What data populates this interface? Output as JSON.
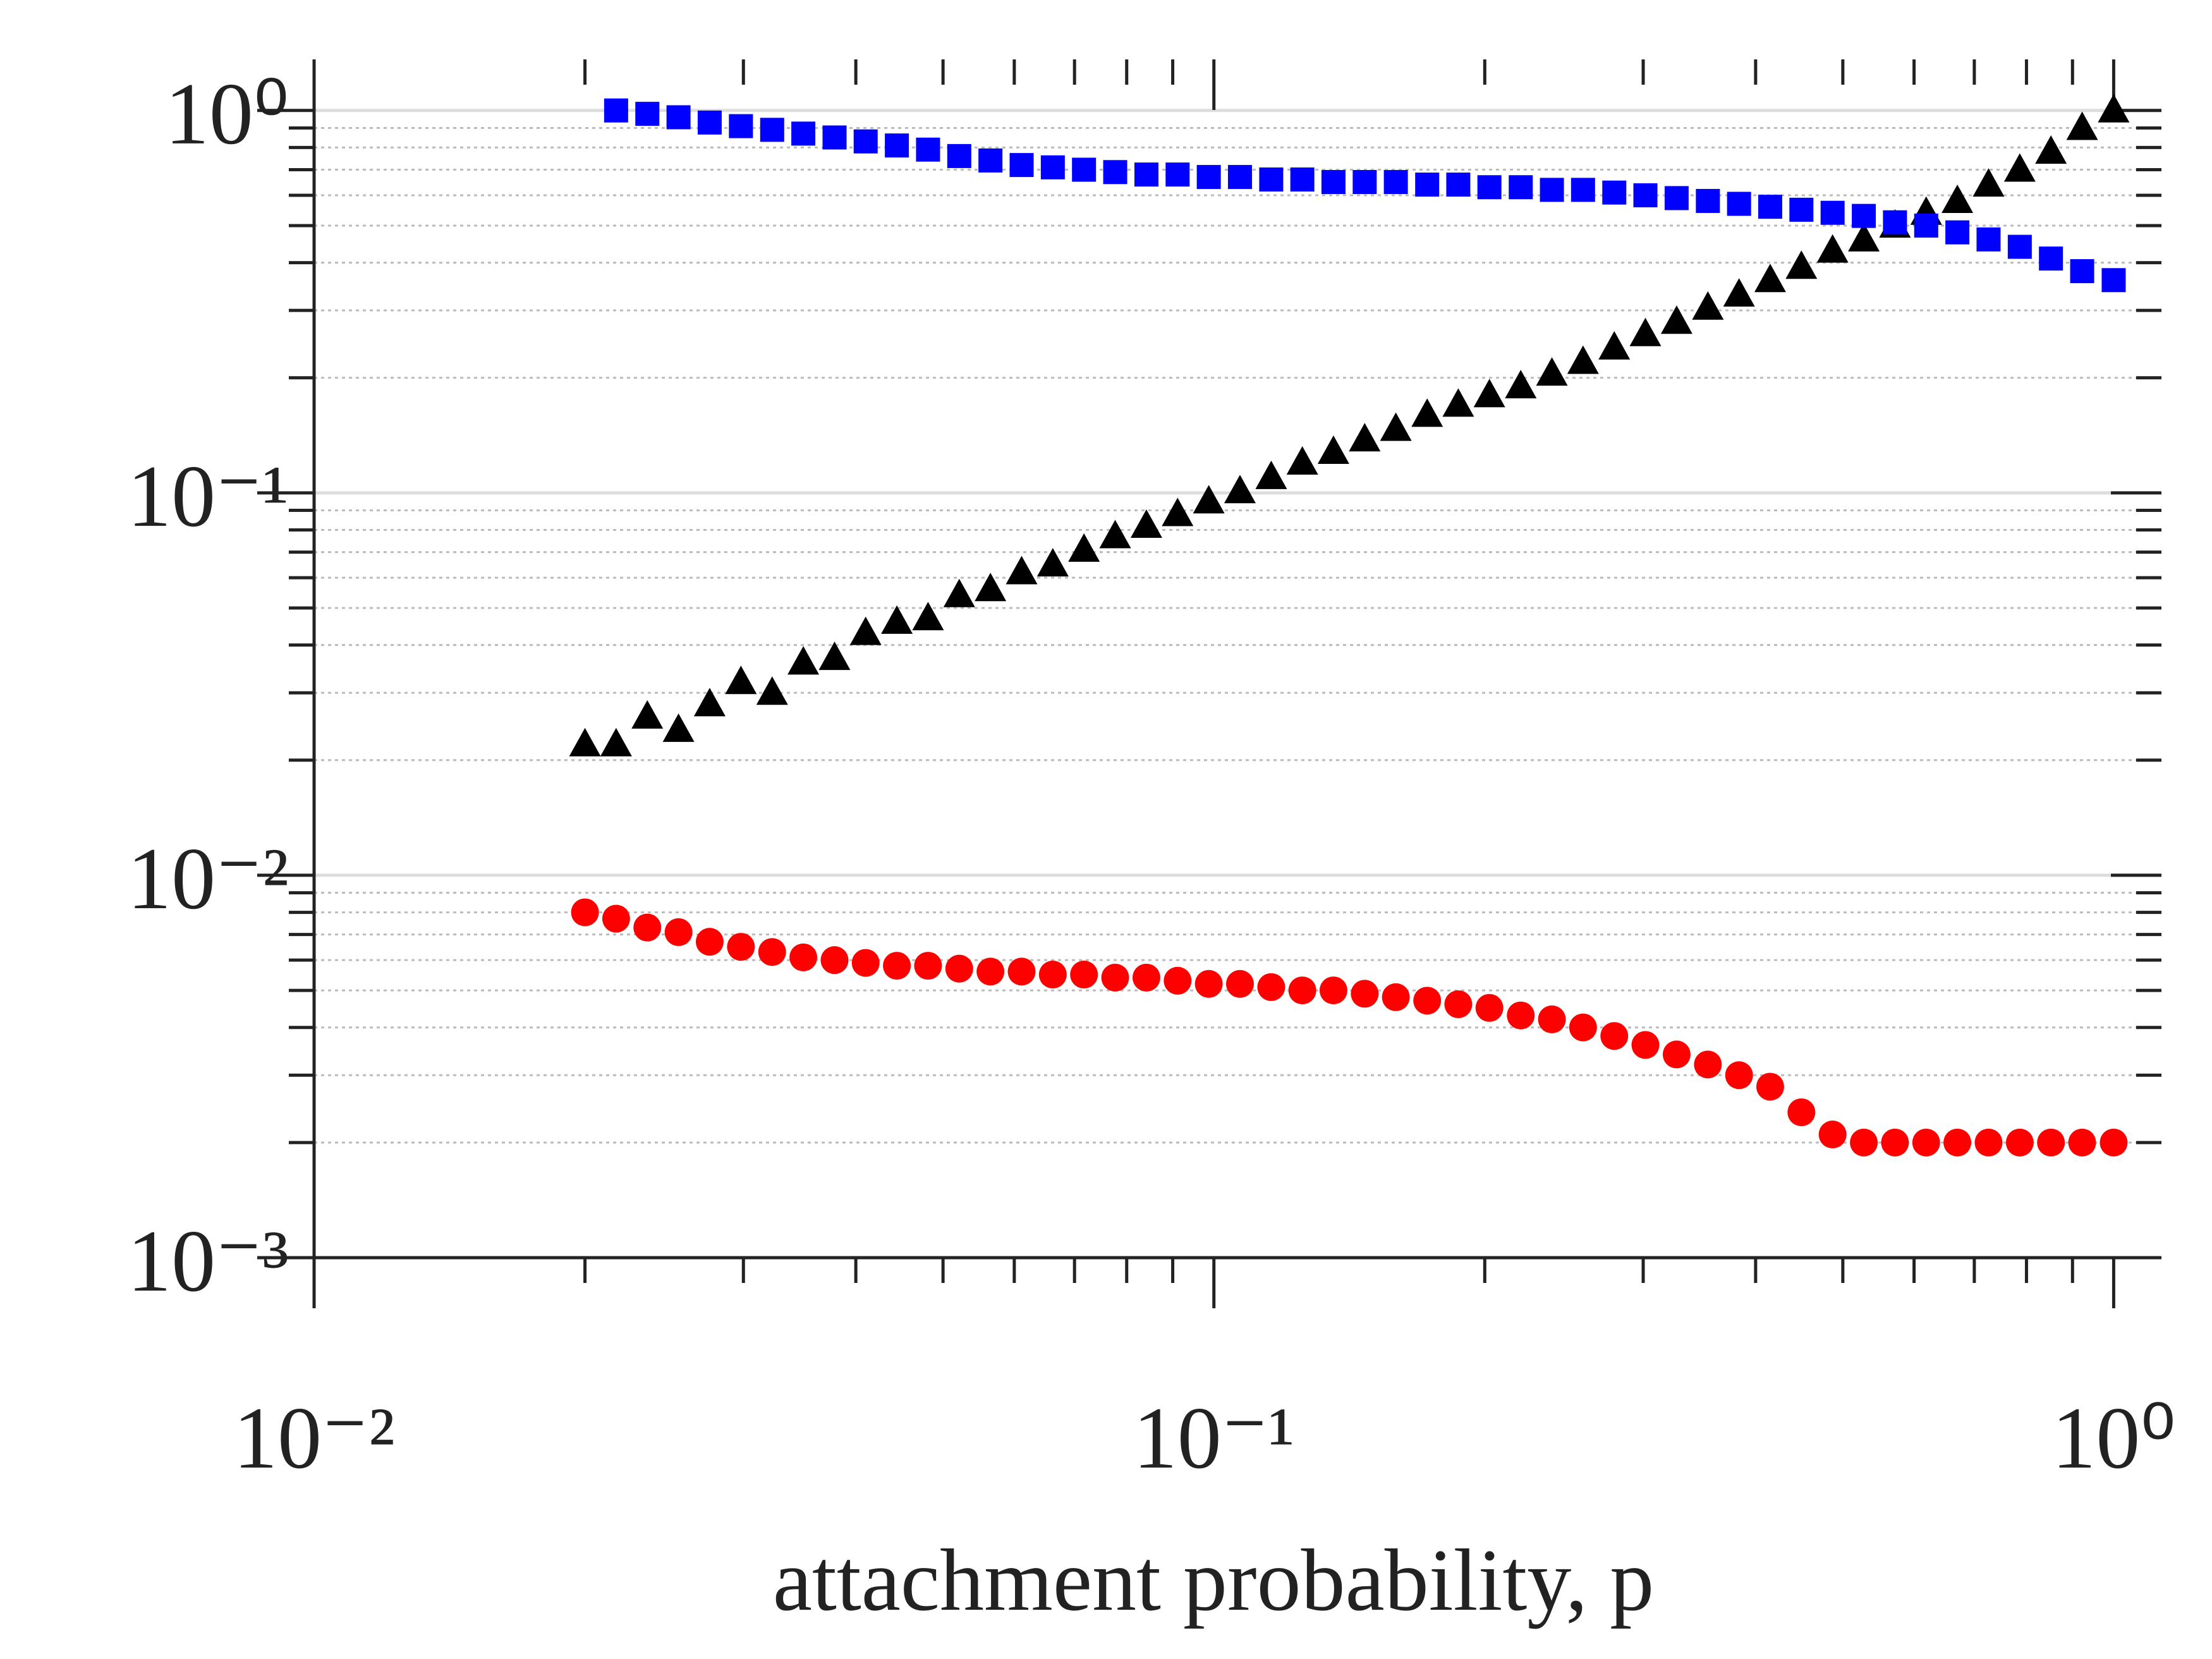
{
  "chart_data": {
    "type": "scatter",
    "xlabel": "attachment probability, p",
    "x": [
      0.02,
      0.02166,
      0.02346,
      0.02541,
      0.02752,
      0.02981,
      0.03229,
      0.03497,
      0.03788,
      0.04102,
      0.04443,
      0.04812,
      0.05212,
      0.05645,
      0.06114,
      0.06622,
      0.07172,
      0.07768,
      0.08414,
      0.09113,
      0.0987,
      0.1069,
      0.1158,
      0.1254,
      0.1358,
      0.1471,
      0.1593,
      0.1726,
      0.1869,
      0.2024,
      0.2193,
      0.2375,
      0.2572,
      0.2786,
      0.3017,
      0.3268,
      0.354,
      0.3834,
      0.4152,
      0.4497,
      0.4871,
      0.5276,
      0.5714,
      0.6189,
      0.6703,
      0.726,
      0.7864,
      0.8517,
      0.9225,
      1.0
    ],
    "series": [
      {
        "color": "#000000",
        "marker": "triangle",
        "values": [
          0.022,
          0.022,
          0.026,
          0.024,
          0.028,
          0.032,
          0.03,
          0.036,
          0.037,
          0.043,
          0.046,
          0.047,
          0.054,
          0.056,
          0.062,
          0.065,
          0.071,
          0.077,
          0.082,
          0.088,
          0.095,
          0.101,
          0.11,
          0.12,
          0.128,
          0.138,
          0.147,
          0.16,
          0.17,
          0.18,
          0.19,
          0.205,
          0.22,
          0.24,
          0.26,
          0.28,
          0.305,
          0.33,
          0.36,
          0.39,
          0.43,
          0.46,
          0.5,
          0.54,
          0.58,
          0.64,
          0.7,
          0.78,
          0.9,
          1.0
        ]
      },
      {
        "color": "#0000ff",
        "marker": "square",
        "values": [
          null,
          1.0,
          0.98,
          0.96,
          0.93,
          0.91,
          0.89,
          0.87,
          0.85,
          0.83,
          0.81,
          0.79,
          0.76,
          0.74,
          0.72,
          0.71,
          0.7,
          0.69,
          0.68,
          0.68,
          0.67,
          0.67,
          0.66,
          0.66,
          0.65,
          0.65,
          0.65,
          0.64,
          0.64,
          0.63,
          0.63,
          0.62,
          0.62,
          0.61,
          0.6,
          0.59,
          0.58,
          0.57,
          0.56,
          0.55,
          0.54,
          0.53,
          0.51,
          0.5,
          0.48,
          0.46,
          0.44,
          0.41,
          0.38,
          0.36
        ]
      },
      {
        "color": "#ff0000",
        "marker": "circle",
        "values": [
          0.008,
          0.0077,
          0.0073,
          0.0071,
          0.0067,
          0.0065,
          0.0063,
          0.0061,
          0.006,
          0.0059,
          0.0058,
          0.0058,
          0.0057,
          0.0056,
          0.0056,
          0.0055,
          0.0055,
          0.0054,
          0.0054,
          0.0053,
          0.0052,
          0.0052,
          0.0051,
          0.005,
          0.005,
          0.0049,
          0.0048,
          0.0047,
          0.0046,
          0.0045,
          0.0043,
          0.0042,
          0.004,
          0.0038,
          0.0036,
          0.0034,
          0.0032,
          0.003,
          0.0028,
          0.0024,
          0.0021,
          0.002,
          0.002,
          0.002,
          0.002,
          0.002,
          0.002,
          0.002,
          0.002,
          0.002
        ]
      }
    ],
    "xscale": "log",
    "yscale": "log",
    "xlim": [
      0.01,
      1.13
    ],
    "ylim": [
      0.001,
      1.36
    ],
    "xticks": [
      {
        "value": 0.01,
        "label": "10⁻²"
      },
      {
        "value": 0.1,
        "label": "10⁻¹"
      },
      {
        "value": 1,
        "label": "10⁰"
      }
    ],
    "yticks": [
      {
        "value": 0.001,
        "label": "10⁻³"
      },
      {
        "value": 0.01,
        "label": "10⁻²"
      },
      {
        "value": 0.1,
        "label": "10⁻¹"
      },
      {
        "value": 1,
        "label": "10⁰"
      }
    ],
    "xminorticks": [
      0.02,
      0.03,
      0.04,
      0.05,
      0.06,
      0.07,
      0.08,
      0.09,
      0.2,
      0.3,
      0.4,
      0.5,
      0.6,
      0.7,
      0.8,
      0.9
    ],
    "yminorticks": [
      0.002,
      0.003,
      0.004,
      0.005,
      0.006,
      0.007,
      0.008,
      0.009,
      0.02,
      0.03,
      0.04,
      0.05,
      0.06,
      0.07,
      0.08,
      0.09,
      0.2,
      0.3,
      0.4,
      0.5,
      0.6,
      0.7,
      0.8,
      0.9
    ],
    "grid": true
  }
}
